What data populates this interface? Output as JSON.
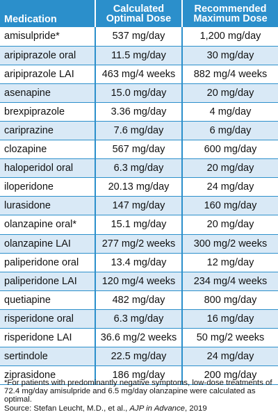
{
  "table": {
    "headers": {
      "medication": "Medication",
      "calculated": [
        "Calculated",
        "Optimal Dose"
      ],
      "recommended": [
        "Recommended",
        "Maximum Dose"
      ]
    },
    "rows": [
      {
        "medication": "amisulpride*",
        "calculated": "537 mg/day",
        "recommended": "1,200 mg/day"
      },
      {
        "medication": "aripiprazole oral",
        "calculated": "11.5 mg/day",
        "recommended": "30 mg/day"
      },
      {
        "medication": "aripiprazole LAI",
        "calculated": "463 mg/4 weeks",
        "recommended": "882 mg/4 weeks"
      },
      {
        "medication": "asenapine",
        "calculated": "15.0 mg/day",
        "recommended": "20 mg/day"
      },
      {
        "medication": "brexpiprazole",
        "calculated": "3.36 mg/day",
        "recommended": "4 mg/day"
      },
      {
        "medication": "cariprazine",
        "calculated": "7.6 mg/day",
        "recommended": "6 mg/day"
      },
      {
        "medication": "clozapine",
        "calculated": "567 mg/day",
        "recommended": "600 mg/day"
      },
      {
        "medication": "haloperidol oral",
        "calculated": "6.3 mg/day",
        "recommended": "20 mg/day"
      },
      {
        "medication": "iloperidone",
        "calculated": "20.13 mg/day",
        "recommended": "24 mg/day"
      },
      {
        "medication": "lurasidone",
        "calculated": "147 mg/day",
        "recommended": "160 mg/day"
      },
      {
        "medication": "olanzapine oral*",
        "calculated": "15.1 mg/day",
        "recommended": "20 mg/day"
      },
      {
        "medication": "olanzapine LAI",
        "calculated": "277 mg/2 weeks",
        "recommended": "300 mg/2 weeks"
      },
      {
        "medication": "paliperidone oral",
        "calculated": "13.4 mg/day",
        "recommended": "12 mg/day"
      },
      {
        "medication": "paliperidone LAI",
        "calculated": "120 mg/4 weeks",
        "recommended": "234 mg/4 weeks"
      },
      {
        "medication": "quetiapine",
        "calculated": "482 mg/day",
        "recommended": "800 mg/day"
      },
      {
        "medication": "risperidone oral",
        "calculated": "6.3 mg/day",
        "recommended": "16 mg/day"
      },
      {
        "medication": "risperidone LAI",
        "calculated": "36.6 mg/2 weeks",
        "recommended": "50 mg/2 weeks"
      },
      {
        "medication": "sertindole",
        "calculated": "22.5 mg/day",
        "recommended": "24 mg/day"
      },
      {
        "medication": "ziprasidone",
        "calculated": "186 mg/day",
        "recommended": "200 mg/day"
      }
    ]
  },
  "footnote": {
    "note": "*For patients with predominantly negative symptoms, low-dose treatments of 72.4 mg/day amisulpride and 6.5 mg/day olanzapine were calculated as optimal.",
    "source_prefix": "Source: Stefan Leucht, M.D., et al., ",
    "source_journal": "AJP in Advance",
    "source_suffix": ", 2019"
  },
  "colors": {
    "header_blue": "#2b8fcb",
    "stripe_blue": "#d9e9f6"
  }
}
